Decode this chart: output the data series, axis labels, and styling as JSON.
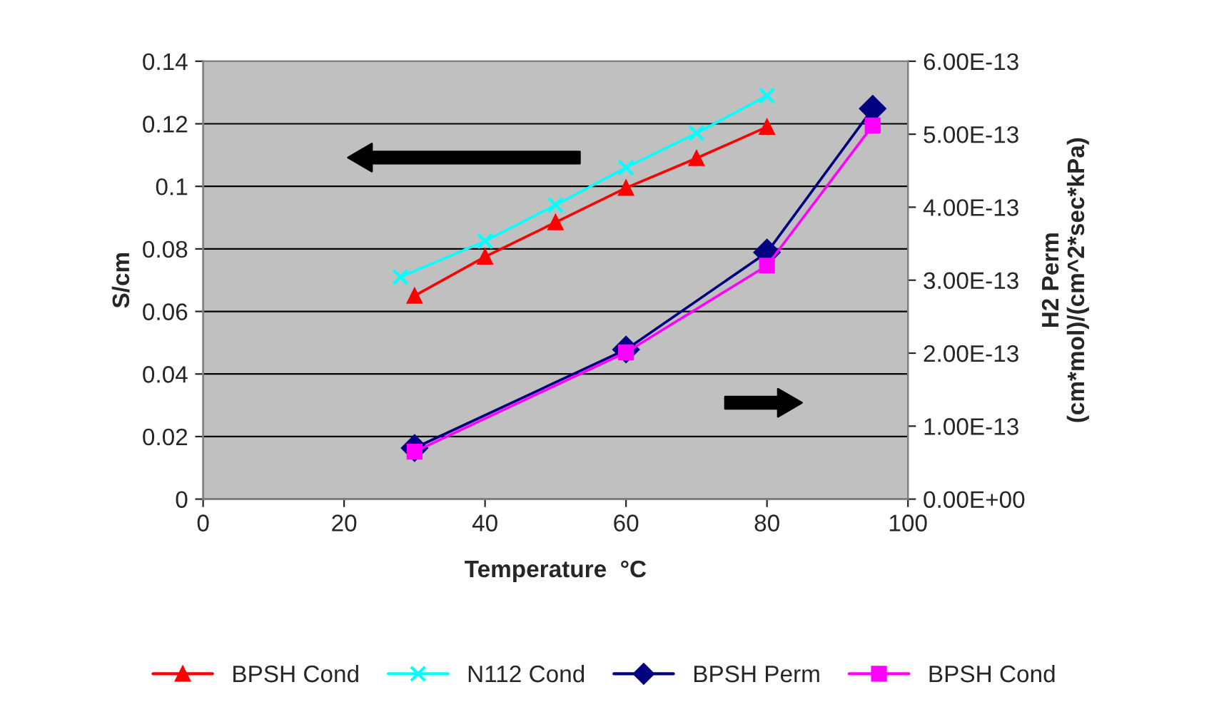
{
  "chart_data": {
    "type": "line",
    "xlabel": "Temperature  °C",
    "ylabel": "S/cm",
    "y2label": "H2 Perm\n(cm*mol)/(cm^2*sec*kPa)",
    "xlim": [
      0,
      100
    ],
    "xticks": [
      0,
      20,
      40,
      60,
      80,
      100
    ],
    "ylim": [
      0,
      0.14
    ],
    "yticks": [
      0,
      0.02,
      0.04,
      0.06,
      0.08,
      0.1,
      0.12,
      0.14
    ],
    "y2lim": [
      0,
      6e-13
    ],
    "y2ticks": [
      {
        "value": 0,
        "label": "0.00E+00"
      },
      {
        "value": 1e-13,
        "label": "1.00E-13"
      },
      {
        "value": 2e-13,
        "label": "2.00E-13"
      },
      {
        "value": 3e-13,
        "label": "3.00E-13"
      },
      {
        "value": 4e-13,
        "label": "4.00E-13"
      },
      {
        "value": 5e-13,
        "label": "5.00E-13"
      },
      {
        "value": 6e-13,
        "label": "6.00E-13"
      }
    ],
    "grid": "y",
    "legend": "bottom",
    "series": [
      {
        "name": "BPSH Cond",
        "color": "#ff0000",
        "marker": "triangle",
        "x": [
          30,
          40,
          50,
          60,
          70,
          80
        ],
        "values": [
          0.065,
          0.0775,
          0.0885,
          0.0995,
          0.109,
          0.119
        ]
      },
      {
        "name": "N112 Cond",
        "color": "#00ffff",
        "marker": "cross",
        "x": [
          28,
          40,
          50,
          60,
          70,
          80
        ],
        "values": [
          0.071,
          0.0825,
          0.094,
          0.106,
          0.117,
          0.129
        ]
      },
      {
        "name": "BPSH Perm",
        "color": "#000080",
        "marker": "diamond",
        "axis": "y2",
        "x": [
          30,
          60,
          80,
          95
        ],
        "values": [
          7e-14,
          2.05e-13,
          3.38e-13,
          5.35e-13
        ]
      },
      {
        "name": "BPSH Cond",
        "color": "#ff00ff",
        "marker": "square",
        "axis": "y2",
        "x": [
          30,
          60,
          80,
          95
        ],
        "values": [
          6.5e-14,
          2.01e-13,
          3.2e-13,
          5.12e-13
        ]
      }
    ]
  }
}
